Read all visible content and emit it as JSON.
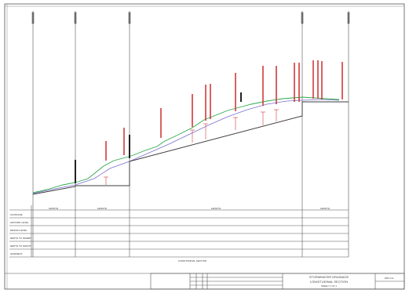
{
  "drawing": {
    "colors": {
      "line": "#333333",
      "ground": "#2aa84a",
      "design": "#3c3c3c",
      "survey": "#7a6fd0",
      "annotation": "#d23a3a"
    },
    "table_rows": [
      {
        "label": "CHAINAGE"
      },
      {
        "label": "GROUND LEVEL"
      },
      {
        "label": "DESIGN LEVEL"
      },
      {
        "label": "DEPTH TO INVERT"
      },
      {
        "label": "DEPTH TO SOFFIT"
      },
      {
        "label": "GRADIENT"
      }
    ],
    "pipe_labels": [
      {
        "text": "LENGTH"
      },
      {
        "text": "LENGTH"
      },
      {
        "text": "LENGTH"
      },
      {
        "text": "LENGTH"
      }
    ],
    "legend_text": "LONGITUDINAL SECTION",
    "title_block": {
      "project_line1": "STORMWATER DRAINAGE",
      "project_line2": "LONGITUDINAL SECTION",
      "project_line3": "SHEET 1 OF 1",
      "drawing_no": "DRG No."
    }
  }
}
